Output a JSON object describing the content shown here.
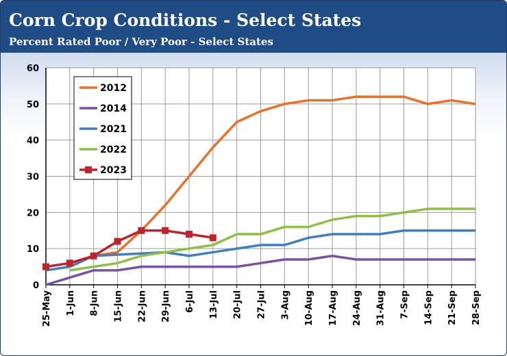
{
  "header": {
    "title": "Corn Crop Conditions - Select States",
    "subtitle": "Percent Rated Poor / Very Poor - Select States"
  },
  "chart_data": {
    "type": "line",
    "title": "Corn Crop Conditions - Select States",
    "subtitle": "Percent Rated Poor / Very Poor - Select States",
    "xlabel": "",
    "ylabel": "",
    "ylim": [
      0,
      60
    ],
    "yticks": [
      0,
      10,
      20,
      30,
      40,
      50,
      60
    ],
    "grid": true,
    "legend": "top-left",
    "categories": [
      "25-May",
      "1-Jun",
      "8-Jun",
      "15-Jun",
      "22-Jun",
      "29-Jun",
      "6-Jul",
      "13-Jul",
      "20-Jul",
      "27-Jul",
      "3-Aug",
      "10-Aug",
      "17-Aug",
      "24-Aug",
      "31-Aug",
      "7-Sep",
      "14-Sep",
      "21-Sep",
      "28-Sep"
    ],
    "series": [
      {
        "name": "2012",
        "color": "#e8722a",
        "marker": "none",
        "values": [
          null,
          5,
          8,
          9,
          15,
          22,
          30,
          38,
          45,
          48,
          50,
          51,
          51,
          52,
          52,
          52,
          50,
          51,
          50
        ]
      },
      {
        "name": "2014",
        "color": "#7b4fa3",
        "marker": "none",
        "values": [
          0,
          2,
          4,
          4,
          5,
          5,
          5,
          5,
          5,
          6,
          7,
          7,
          8,
          7,
          7,
          7,
          7,
          7,
          7
        ]
      },
      {
        "name": "2021",
        "color": "#3d7fc1",
        "marker": "none",
        "values": [
          4,
          5,
          8,
          null,
          null,
          9,
          8,
          9,
          10,
          11,
          11,
          13,
          14,
          14,
          14,
          15,
          15,
          15,
          15
        ]
      },
      {
        "name": "2022",
        "color": "#8dc045",
        "marker": "none",
        "values": [
          null,
          4,
          5,
          6,
          8,
          9,
          10,
          11,
          14,
          14,
          16,
          16,
          18,
          19,
          19,
          20,
          21,
          21,
          21
        ]
      },
      {
        "name": "2023",
        "color": "#c0232b",
        "marker": "square",
        "values": [
          5,
          6,
          8,
          12,
          15,
          15,
          14,
          13,
          null,
          null,
          null,
          null,
          null,
          null,
          null,
          null,
          null,
          null,
          null
        ]
      }
    ]
  }
}
